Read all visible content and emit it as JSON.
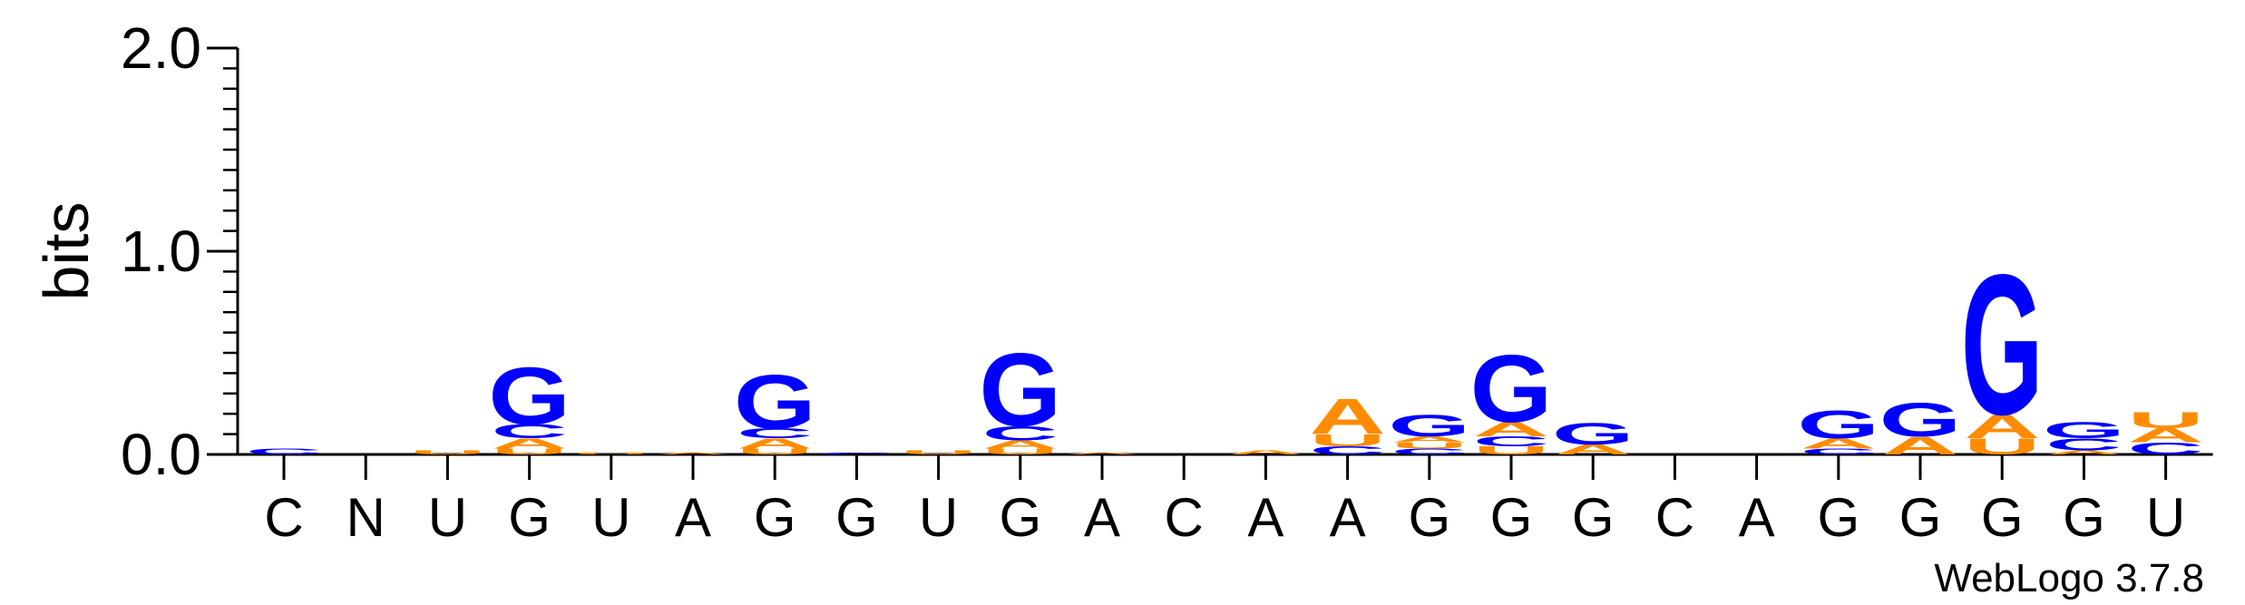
{
  "chart_data": {
    "type": "sequence-logo",
    "ylabel": "bits",
    "ylim": [
      0,
      2.0
    ],
    "yticks": [
      {
        "value": 0.0,
        "label": "0.0"
      },
      {
        "value": 1.0,
        "label": "1.0"
      },
      {
        "value": 2.0,
        "label": "2.0"
      }
    ],
    "colors": {
      "G": "#0000ff",
      "C": "#0000ff",
      "A": "#ff8c00",
      "U": "#ff8c00"
    },
    "positions": [
      {
        "label": "C",
        "stack": [
          {
            "letter": "C",
            "height": 0.03
          }
        ]
      },
      {
        "label": "N",
        "stack": []
      },
      {
        "label": "U",
        "stack": [
          {
            "letter": "U",
            "height": 0.02
          }
        ]
      },
      {
        "label": "G",
        "stack": [
          {
            "letter": "U",
            "height": 0.03
          },
          {
            "letter": "A",
            "height": 0.05
          },
          {
            "letter": "C",
            "height": 0.07
          },
          {
            "letter": "G",
            "height": 0.29
          }
        ]
      },
      {
        "label": "U",
        "stack": [
          {
            "letter": "U",
            "height": 0.01
          }
        ]
      },
      {
        "label": "A",
        "stack": [
          {
            "letter": "A",
            "height": 0.01
          }
        ]
      },
      {
        "label": "G",
        "stack": [
          {
            "letter": "U",
            "height": 0.03
          },
          {
            "letter": "A",
            "height": 0.05
          },
          {
            "letter": "C",
            "height": 0.05
          },
          {
            "letter": "G",
            "height": 0.27
          }
        ]
      },
      {
        "label": "G",
        "stack": [
          {
            "letter": "C",
            "height": 0.01
          }
        ]
      },
      {
        "label": "U",
        "stack": [
          {
            "letter": "U",
            "height": 0.02
          }
        ]
      },
      {
        "label": "G",
        "stack": [
          {
            "letter": "U",
            "height": 0.03
          },
          {
            "letter": "A",
            "height": 0.04
          },
          {
            "letter": "C",
            "height": 0.07
          },
          {
            "letter": "G",
            "height": 0.37
          }
        ]
      },
      {
        "label": "A",
        "stack": [
          {
            "letter": "A",
            "height": 0.01
          }
        ]
      },
      {
        "label": "C",
        "stack": []
      },
      {
        "label": "A",
        "stack": [
          {
            "letter": "A",
            "height": 0.02
          }
        ]
      },
      {
        "label": "A",
        "stack": [
          {
            "letter": "C",
            "height": 0.04
          },
          {
            "letter": "U",
            "height": 0.06
          },
          {
            "letter": "A",
            "height": 0.18
          }
        ]
      },
      {
        "label": "G",
        "stack": [
          {
            "letter": "C",
            "height": 0.03
          },
          {
            "letter": "U",
            "height": 0.03
          },
          {
            "letter": "A",
            "height": 0.03
          },
          {
            "letter": "G",
            "height": 0.11
          }
        ]
      },
      {
        "label": "G",
        "stack": [
          {
            "letter": "U",
            "height": 0.04
          },
          {
            "letter": "C",
            "height": 0.05
          },
          {
            "letter": "A",
            "height": 0.07
          },
          {
            "letter": "G",
            "height": 0.34
          }
        ]
      },
      {
        "label": "G",
        "stack": [
          {
            "letter": "A",
            "height": 0.05
          },
          {
            "letter": "G",
            "height": 0.11
          }
        ]
      },
      {
        "label": "C",
        "stack": []
      },
      {
        "label": "A",
        "stack": []
      },
      {
        "label": "G",
        "stack": [
          {
            "letter": "C",
            "height": 0.03
          },
          {
            "letter": "A",
            "height": 0.05
          },
          {
            "letter": "G",
            "height": 0.14
          }
        ]
      },
      {
        "label": "G",
        "stack": [
          {
            "letter": "A",
            "height": 0.09
          },
          {
            "letter": "G",
            "height": 0.17
          }
        ]
      },
      {
        "label": "G",
        "stack": [
          {
            "letter": "U",
            "height": 0.08
          },
          {
            "letter": "A",
            "height": 0.12
          },
          {
            "letter": "G",
            "height": 0.71
          }
        ]
      },
      {
        "label": "G",
        "stack": [
          {
            "letter": "A",
            "height": 0.02
          },
          {
            "letter": "C",
            "height": 0.06
          },
          {
            "letter": "G",
            "height": 0.08
          }
        ]
      },
      {
        "label": "U",
        "stack": [
          {
            "letter": "C",
            "height": 0.06
          },
          {
            "letter": "A",
            "height": 0.07
          },
          {
            "letter": "U",
            "height": 0.08
          }
        ]
      }
    ]
  },
  "credit": "WebLogo 3.7.8"
}
